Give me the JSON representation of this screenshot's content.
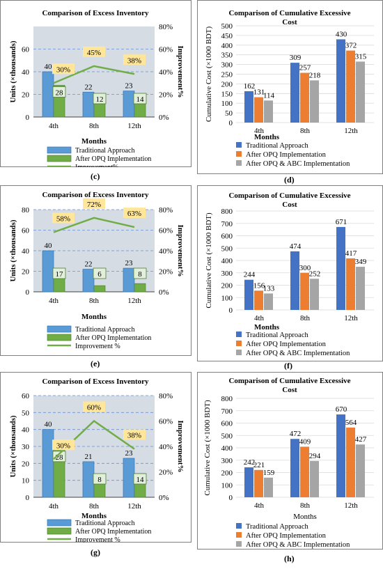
{
  "chart_data": [
    {
      "id": "c",
      "type": "bar",
      "subcaption": "(c)",
      "title": "Comparison of Excess Inventory",
      "xlabel": "Months",
      "ylabel": "Units (×thousands)",
      "y2label": "Improvement%",
      "categories": [
        "4th",
        "8th",
        "12th"
      ],
      "ylim": [
        0,
        80
      ],
      "yticks": [
        "0",
        "20",
        "40",
        "60"
      ],
      "y2lim": [
        0,
        80
      ],
      "y2ticks": [
        "0%",
        "20%",
        "40%",
        "60%",
        "80%"
      ],
      "grid": true,
      "series": [
        {
          "name": "Traditional Approach",
          "values": [
            40,
            22,
            23
          ],
          "color": "#5b9bd5"
        },
        {
          "name": "After OPQ Implementation",
          "values": [
            28,
            12,
            14
          ],
          "color": "#70ad47"
        }
      ],
      "line": {
        "name": "Improvement%",
        "values": [
          30,
          45,
          38
        ],
        "labels": [
          "30%",
          "45%",
          "38%"
        ],
        "color": "#70ad47"
      },
      "legend": [
        "Traditional Approach",
        "After OPQ Implementation",
        "Improvement%"
      ]
    },
    {
      "id": "d",
      "type": "bar",
      "subcaption": "(d)",
      "title": "Comparison of Cumulative Excessive Cost",
      "xlabel": "Months",
      "ylabel": "Cumulative Cost (×1000 BDT)",
      "categories": [
        "4th",
        "8th",
        "12th"
      ],
      "ylim": [
        0,
        500
      ],
      "yticks": [
        "0",
        "50",
        "100",
        "150",
        "200",
        "250",
        "300",
        "350",
        "400",
        "450",
        "500"
      ],
      "grid": true,
      "series": [
        {
          "name": "Traditional Approach",
          "values": [
            162,
            309,
            430
          ],
          "color": "#4472c4"
        },
        {
          "name": "After OPQ Implementation",
          "values": [
            131,
            257,
            372
          ],
          "color": "#ed7d31"
        },
        {
          "name": "After OPQ & ABC Implementation",
          "values": [
            114,
            218,
            315
          ],
          "color": "#a5a5a5"
        }
      ],
      "legend": [
        "Traditional Approach",
        "After OPQ Implementation",
        "After OPQ & ABC Implementation"
      ]
    },
    {
      "id": "e",
      "type": "bar",
      "subcaption": "(e)",
      "title": "Comparison of Excess Inventory",
      "xlabel": "Months",
      "ylabel": "Units (×thousands)",
      "y2label": "Improvement%",
      "categories": [
        "4th",
        "8th",
        "12th"
      ],
      "ylim": [
        0,
        80
      ],
      "yticks": [
        "0",
        "20",
        "40",
        "60",
        "80"
      ],
      "y2lim": [
        0,
        80
      ],
      "y2ticks": [
        "0%",
        "20%",
        "40%",
        "60%",
        "80%"
      ],
      "grid": true,
      "series": [
        {
          "name": "Traditional Approach",
          "values": [
            40,
            22,
            23
          ],
          "color": "#5b9bd5"
        },
        {
          "name": "After OPQ Implementation",
          "values": [
            17,
            6,
            8
          ],
          "color": "#70ad47"
        }
      ],
      "line": {
        "name": "Improvement %",
        "values": [
          58,
          72,
          63
        ],
        "labels": [
          "58%",
          "72%",
          "63%"
        ],
        "color": "#70ad47"
      },
      "legend": [
        "Traditional Approach",
        "After OPQ Implementation",
        "Improvement %"
      ]
    },
    {
      "id": "f",
      "type": "bar",
      "subcaption": "(f)",
      "title": "Comparison of Cumulative Excessive Cost",
      "xlabel": "Months",
      "ylabel": "Cumulative Cost (×1000 BDT)",
      "categories": [
        "4th",
        "8th",
        "12th"
      ],
      "ylim": [
        0,
        800
      ],
      "yticks": [
        "0",
        "100",
        "200",
        "300",
        "400",
        "500",
        "600",
        "700",
        "800"
      ],
      "grid": true,
      "series": [
        {
          "name": "Traditional Approach",
          "values": [
            244,
            474,
            671
          ],
          "color": "#4472c4"
        },
        {
          "name": "After OPQ Implementation",
          "values": [
            156,
            300,
            417
          ],
          "color": "#ed7d31"
        },
        {
          "name": "After OPQ & ABC Implementation",
          "values": [
            133,
            252,
            349
          ],
          "color": "#a5a5a5"
        }
      ],
      "legend": [
        "Traditional Approach",
        "After OPQ Implementation",
        "After OPQ & ABC Implementation"
      ]
    },
    {
      "id": "g",
      "type": "bar",
      "subcaption": "(g)",
      "title": "Comparison of Excess Inventory",
      "xlabel": "Months",
      "ylabel": "Units (×thousands)",
      "y2label": "Improvement%",
      "categories": [
        "4th",
        "8th",
        "12th"
      ],
      "ylim": [
        0,
        60
      ],
      "yticks": [
        "0",
        "10",
        "20",
        "30",
        "40",
        "50",
        "60"
      ],
      "y2lim": [
        0,
        80
      ],
      "y2ticks": [
        "0%",
        "20%",
        "40%",
        "60%",
        "80%"
      ],
      "grid": true,
      "series": [
        {
          "name": "Traditional Approach",
          "values": [
            40,
            21,
            23
          ],
          "color": "#5b9bd5"
        },
        {
          "name": "After OPQ Implementation",
          "values": [
            28,
            8,
            14
          ],
          "color": "#70ad47"
        }
      ],
      "line": {
        "name": "Improvement %",
        "values": [
          30,
          60,
          38
        ],
        "labels": [
          "30%",
          "60%",
          "38%"
        ],
        "color": "#70ad47"
      },
      "legend": [
        "Traditional Approach",
        "After OPQ Implementation",
        "Improvement %"
      ]
    },
    {
      "id": "h",
      "type": "bar",
      "subcaption": "(h)",
      "title": "Comparison of Cumulative Excessive Cost",
      "xlabel": "Months",
      "ylabel": "Cumulative Cost (×1000 BDT)",
      "categories": [
        "4th",
        "8th",
        "12th"
      ],
      "ylim": [
        0,
        800
      ],
      "yticks": [
        "0",
        "100",
        "200",
        "300",
        "400",
        "500",
        "600",
        "700",
        "800"
      ],
      "grid": true,
      "series": [
        {
          "name": "Traditional Approach",
          "values": [
            242,
            472,
            670
          ],
          "color": "#4472c4"
        },
        {
          "name": "After OPQ Implementation",
          "values": [
            221,
            409,
            564
          ],
          "color": "#ed7d31"
        },
        {
          "name": "After OPQ & ABC Implementation",
          "values": [
            159,
            294,
            427
          ],
          "color": "#a5a5a5"
        }
      ],
      "legend": [
        "Traditional Approach",
        "After OPQ Implementation",
        "After OPQ & ABC Implementation"
      ]
    }
  ]
}
